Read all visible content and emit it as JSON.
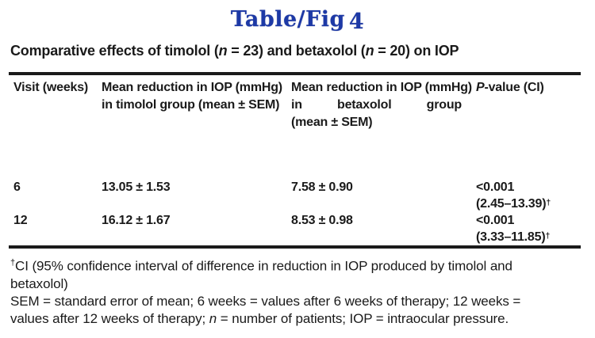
{
  "figure": {
    "heading_main": "Table/Fig",
    "heading_number": "4",
    "title": {
      "part1": "Comparative effects of timolol (",
      "n1": "n",
      "part2": " = 23) and betaxolol (",
      "n2": "n",
      "part3": " = 20) on IOP"
    }
  },
  "table": {
    "headers": {
      "col1": "Visit (weeks)",
      "col2_line1": "Mean reduction in IOP (mmHg)",
      "col2_line2": "in timolol group (mean ± SEM)",
      "col3_line1": "Mean reduction in IOP (mmHg)",
      "col3_line2_w1": "in",
      "col3_line2_w2": "betaxolol",
      "col3_line2_w3": "group",
      "col3_line3": "(mean ± SEM)",
      "col4_italic": "P",
      "col4_rest": "-value (CI)"
    },
    "rows": [
      {
        "visit": "6",
        "timolol": "13.05 ± 1.53",
        "betaxolol": "7.58 ± 0.90",
        "p_value": "<0.001",
        "ci": "(2.45–13.39)",
        "dagger": "†"
      },
      {
        "visit": "12",
        "timolol": "16.12 ± 1.67",
        "betaxolol": "8.53 ± 0.98",
        "p_value": "<0.001",
        "ci": "(3.33–11.85)",
        "dagger": "†"
      }
    ]
  },
  "footnotes": {
    "dagger": "†",
    "ci_line1": "CI (95% confidence interval of difference in reduction in IOP produced by timolol and",
    "ci_line2": "betaxolol)",
    "abbrev_line1": "SEM = standard error of mean; 6 weeks = values after 6 weeks of therapy; 12 weeks =",
    "abbrev_line2_part1": "values after 12 weeks of therapy; ",
    "abbrev_line2_n": "n",
    "abbrev_line2_part2": " = number of patients; IOP = intraocular pressure."
  },
  "colors": {
    "heading_blue": "#1d39a6",
    "text": "#1a1a1a",
    "rule": "#1a1a1a"
  }
}
